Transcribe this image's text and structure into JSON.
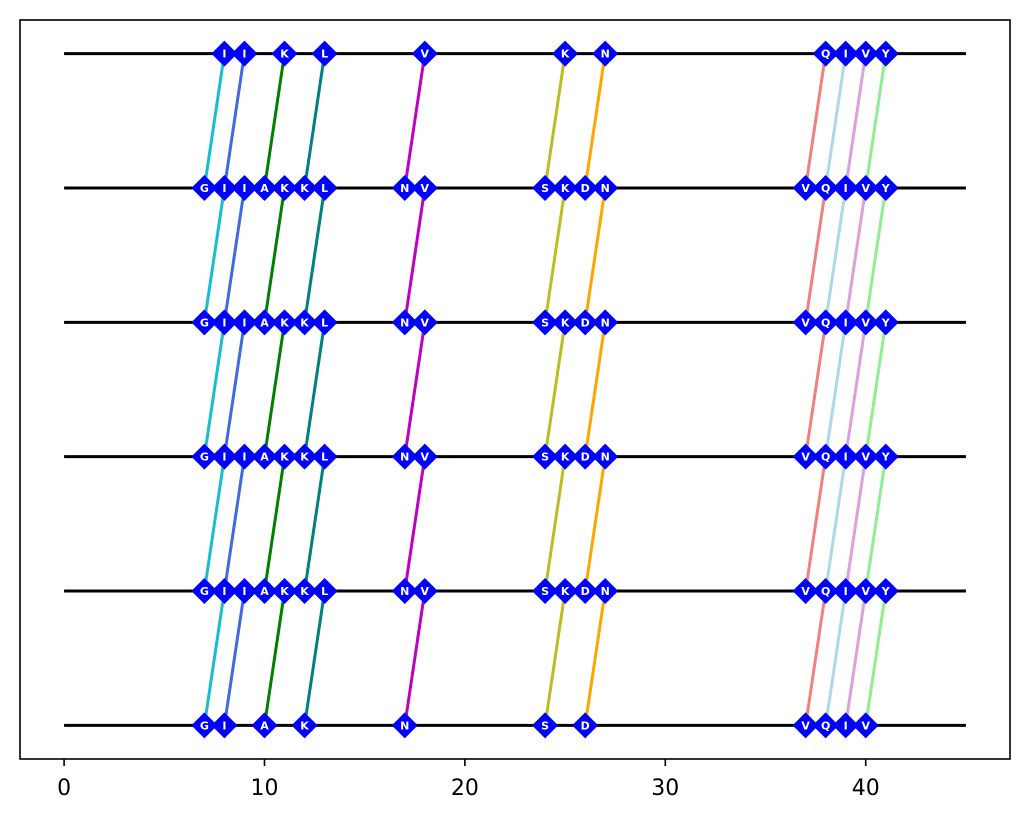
{
  "chart_data": {
    "type": "scatter",
    "title": "",
    "xlabel": "",
    "ylabel": "",
    "xlim": [
      -2.2,
      47.2
    ],
    "ylim": [
      -0.25,
      5.25
    ],
    "x_ticks": [
      0,
      10,
      20,
      30,
      40
    ],
    "x_tick_labels": [
      "0",
      "10",
      "20",
      "30",
      "40"
    ],
    "y_ticks_visible": false,
    "grid": false,
    "legend": "none",
    "track_line": {
      "x_start": 0,
      "x_end": 45,
      "color": "#000000"
    },
    "marker_color": "#0000ff",
    "marker_shape": "diamond",
    "tracks": [
      {
        "y": 0,
        "residues": [
          {
            "x": 7,
            "label": "G"
          },
          {
            "x": 8,
            "label": "I"
          },
          {
            "x": 10,
            "label": "A"
          },
          {
            "x": 12,
            "label": "K"
          },
          {
            "x": 17,
            "label": "N"
          },
          {
            "x": 24,
            "label": "S"
          },
          {
            "x": 26,
            "label": "D"
          },
          {
            "x": 37,
            "label": "V"
          },
          {
            "x": 38,
            "label": "Q"
          },
          {
            "x": 39,
            "label": "I"
          },
          {
            "x": 40,
            "label": "V"
          }
        ]
      },
      {
        "y": 1,
        "residues": [
          {
            "x": 7,
            "label": "G"
          },
          {
            "x": 8,
            "label": "I"
          },
          {
            "x": 9,
            "label": "I"
          },
          {
            "x": 10,
            "label": "A"
          },
          {
            "x": 11,
            "label": "K"
          },
          {
            "x": 12,
            "label": "K"
          },
          {
            "x": 13,
            "label": "L"
          },
          {
            "x": 17,
            "label": "N"
          },
          {
            "x": 18,
            "label": "V"
          },
          {
            "x": 24,
            "label": "S"
          },
          {
            "x": 25,
            "label": "K"
          },
          {
            "x": 26,
            "label": "D"
          },
          {
            "x": 27,
            "label": "N"
          },
          {
            "x": 37,
            "label": "V"
          },
          {
            "x": 38,
            "label": "Q"
          },
          {
            "x": 39,
            "label": "I"
          },
          {
            "x": 40,
            "label": "V"
          },
          {
            "x": 41,
            "label": "Y"
          }
        ]
      },
      {
        "y": 2,
        "residues": [
          {
            "x": 7,
            "label": "G"
          },
          {
            "x": 8,
            "label": "I"
          },
          {
            "x": 9,
            "label": "I"
          },
          {
            "x": 10,
            "label": "A"
          },
          {
            "x": 11,
            "label": "K"
          },
          {
            "x": 12,
            "label": "K"
          },
          {
            "x": 13,
            "label": "L"
          },
          {
            "x": 17,
            "label": "N"
          },
          {
            "x": 18,
            "label": "V"
          },
          {
            "x": 24,
            "label": "S"
          },
          {
            "x": 25,
            "label": "K"
          },
          {
            "x": 26,
            "label": "D"
          },
          {
            "x": 27,
            "label": "N"
          },
          {
            "x": 37,
            "label": "V"
          },
          {
            "x": 38,
            "label": "Q"
          },
          {
            "x": 39,
            "label": "I"
          },
          {
            "x": 40,
            "label": "V"
          },
          {
            "x": 41,
            "label": "Y"
          }
        ]
      },
      {
        "y": 3,
        "residues": [
          {
            "x": 7,
            "label": "G"
          },
          {
            "x": 8,
            "label": "I"
          },
          {
            "x": 9,
            "label": "I"
          },
          {
            "x": 10,
            "label": "A"
          },
          {
            "x": 11,
            "label": "K"
          },
          {
            "x": 12,
            "label": "K"
          },
          {
            "x": 13,
            "label": "L"
          },
          {
            "x": 17,
            "label": "N"
          },
          {
            "x": 18,
            "label": "V"
          },
          {
            "x": 24,
            "label": "S"
          },
          {
            "x": 25,
            "label": "K"
          },
          {
            "x": 26,
            "label": "D"
          },
          {
            "x": 27,
            "label": "N"
          },
          {
            "x": 37,
            "label": "V"
          },
          {
            "x": 38,
            "label": "Q"
          },
          {
            "x": 39,
            "label": "I"
          },
          {
            "x": 40,
            "label": "V"
          },
          {
            "x": 41,
            "label": "Y"
          }
        ]
      },
      {
        "y": 4,
        "residues": [
          {
            "x": 7,
            "label": "G"
          },
          {
            "x": 8,
            "label": "I"
          },
          {
            "x": 9,
            "label": "I"
          },
          {
            "x": 10,
            "label": "A"
          },
          {
            "x": 11,
            "label": "K"
          },
          {
            "x": 12,
            "label": "K"
          },
          {
            "x": 13,
            "label": "L"
          },
          {
            "x": 17,
            "label": "N"
          },
          {
            "x": 18,
            "label": "V"
          },
          {
            "x": 24,
            "label": "S"
          },
          {
            "x": 25,
            "label": "K"
          },
          {
            "x": 26,
            "label": "D"
          },
          {
            "x": 27,
            "label": "N"
          },
          {
            "x": 37,
            "label": "V"
          },
          {
            "x": 38,
            "label": "Q"
          },
          {
            "x": 39,
            "label": "I"
          },
          {
            "x": 40,
            "label": "V"
          },
          {
            "x": 41,
            "label": "Y"
          }
        ]
      },
      {
        "y": 5,
        "residues": [
          {
            "x": 8,
            "label": "I"
          },
          {
            "x": 9,
            "label": "I"
          },
          {
            "x": 11,
            "label": "K"
          },
          {
            "x": 13,
            "label": "L"
          },
          {
            "x": 18,
            "label": "V"
          },
          {
            "x": 25,
            "label": "K"
          },
          {
            "x": 27,
            "label": "N"
          },
          {
            "x": 38,
            "label": "Q"
          },
          {
            "x": 39,
            "label": "I"
          },
          {
            "x": 40,
            "label": "V"
          },
          {
            "x": 41,
            "label": "Y"
          }
        ]
      }
    ],
    "connections": [
      {
        "color": "#17becf",
        "segments": [
          [
            0,
            7,
            1,
            8
          ],
          [
            1,
            7,
            2,
            8
          ],
          [
            2,
            7,
            3,
            8
          ],
          [
            3,
            7,
            4,
            8
          ],
          [
            4,
            7,
            5,
            8
          ]
        ]
      },
      {
        "color": "#4169e1",
        "segments": [
          [
            0,
            8,
            1,
            9
          ],
          [
            1,
            8,
            2,
            9
          ],
          [
            2,
            8,
            3,
            9
          ],
          [
            3,
            8,
            4,
            9
          ],
          [
            4,
            8,
            5,
            9
          ]
        ]
      },
      {
        "color": "#008000",
        "segments": [
          [
            0,
            10,
            1,
            11
          ],
          [
            1,
            10,
            2,
            11
          ],
          [
            2,
            10,
            3,
            11
          ],
          [
            3,
            10,
            4,
            11
          ],
          [
            4,
            10,
            5,
            11
          ]
        ]
      },
      {
        "color": "#008080",
        "segments": [
          [
            0,
            12,
            1,
            13
          ],
          [
            1,
            12,
            2,
            13
          ],
          [
            2,
            12,
            3,
            13
          ],
          [
            3,
            12,
            4,
            13
          ],
          [
            4,
            12,
            5,
            13
          ]
        ]
      },
      {
        "color": "#c000c0",
        "segments": [
          [
            0,
            17,
            1,
            18
          ],
          [
            1,
            17,
            2,
            18
          ],
          [
            2,
            17,
            3,
            18
          ],
          [
            3,
            17,
            4,
            18
          ],
          [
            4,
            17,
            5,
            18
          ]
        ]
      },
      {
        "color": "#bcbd22",
        "segments": [
          [
            0,
            24,
            1,
            25
          ],
          [
            1,
            24,
            2,
            25
          ],
          [
            2,
            24,
            3,
            25
          ],
          [
            3,
            24,
            4,
            25
          ],
          [
            4,
            24,
            5,
            25
          ]
        ]
      },
      {
        "color": "#ffa500",
        "segments": [
          [
            0,
            26,
            1,
            27
          ],
          [
            1,
            26,
            2,
            27
          ],
          [
            2,
            26,
            3,
            27
          ],
          [
            3,
            26,
            4,
            27
          ],
          [
            4,
            26,
            5,
            27
          ]
        ]
      },
      {
        "color": "#f08080",
        "segments": [
          [
            0,
            37,
            1,
            38
          ],
          [
            1,
            37,
            2,
            38
          ],
          [
            2,
            37,
            3,
            38
          ],
          [
            3,
            37,
            4,
            38
          ],
          [
            4,
            37,
            5,
            38
          ]
        ]
      },
      {
        "color": "#add8e6",
        "segments": [
          [
            0,
            38,
            1,
            39
          ],
          [
            1,
            38,
            2,
            39
          ],
          [
            2,
            38,
            3,
            39
          ],
          [
            3,
            38,
            4,
            39
          ],
          [
            4,
            38,
            5,
            39
          ]
        ]
      },
      {
        "color": "#dda0dd",
        "segments": [
          [
            0,
            39,
            1,
            40
          ],
          [
            1,
            39,
            2,
            40
          ],
          [
            2,
            39,
            3,
            40
          ],
          [
            3,
            39,
            4,
            40
          ],
          [
            4,
            39,
            5,
            40
          ]
        ]
      },
      {
        "color": "#90ee90",
        "segments": [
          [
            0,
            40,
            1,
            41
          ],
          [
            1,
            40,
            2,
            41
          ],
          [
            2,
            40,
            3,
            41
          ],
          [
            3,
            40,
            4,
            41
          ],
          [
            4,
            40,
            5,
            41
          ]
        ]
      }
    ]
  }
}
